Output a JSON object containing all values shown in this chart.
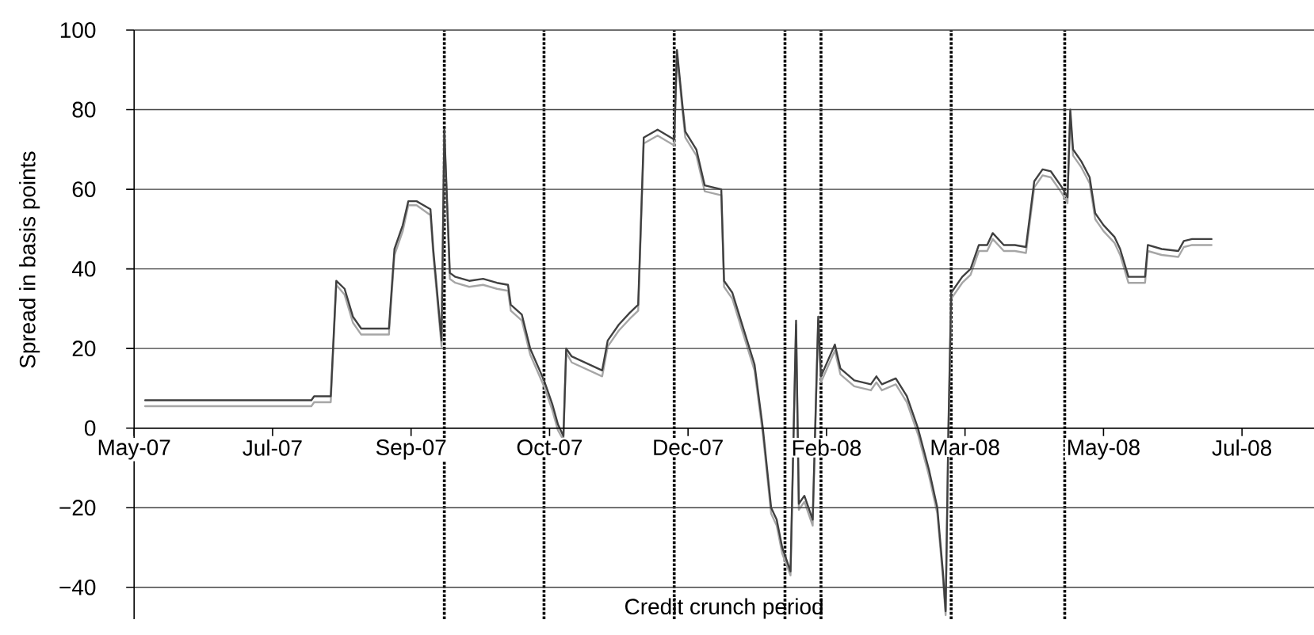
{
  "chart_data": {
    "type": "line",
    "xlabel": "Credit crunch period",
    "ylabel": "Spread in basis points",
    "xlim": [
      "2007-05-31",
      "2008-07-30"
    ],
    "xticks": [
      {
        "value": "2007-05-31",
        "label": "May-07"
      },
      {
        "value": "2007-07-20",
        "label": "Jul-07"
      },
      {
        "value": "2007-09-08",
        "label": "Sep-07"
      },
      {
        "value": "2007-10-28",
        "label": "Oct-07"
      },
      {
        "value": "2007-12-17",
        "label": "Dec-07"
      },
      {
        "value": "2008-02-05",
        "label": "Feb-08"
      },
      {
        "value": "2008-03-26",
        "label": "Mar-08"
      },
      {
        "value": "2008-05-15",
        "label": "May-08"
      },
      {
        "value": "2008-07-04",
        "label": "Jul-08"
      }
    ],
    "ylim": [
      -48,
      100
    ],
    "yticks": [
      {
        "value": -40,
        "label": "−40"
      },
      {
        "value": -20,
        "label": "−20"
      },
      0,
      20,
      40,
      60,
      80,
      100
    ],
    "grid": "y",
    "marker": "none",
    "line_style": "solid",
    "x": [
      "2007-06-04",
      "2007-08-03",
      "2007-08-04",
      "2007-08-10",
      "2007-08-12",
      "2007-08-15",
      "2007-08-18",
      "2007-08-21",
      "2007-08-31",
      "2007-09-02",
      "2007-09-05",
      "2007-09-07",
      "2007-09-10",
      "2007-09-15",
      "2007-09-16",
      "2007-09-19",
      "2007-09-20",
      "2007-09-22",
      "2007-09-24",
      "2007-09-29",
      "2007-10-04",
      "2007-10-09",
      "2007-10-13",
      "2007-10-14",
      "2007-10-18",
      "2007-10-21",
      "2007-10-26",
      "2007-10-29",
      "2007-10-31",
      "2007-11-02",
      "2007-11-03",
      "2007-11-05",
      "2007-11-16",
      "2007-11-18",
      "2007-11-22",
      "2007-11-26",
      "2007-11-29",
      "2007-12-01",
      "2007-12-06",
      "2007-12-12",
      "2007-12-13",
      "2007-12-15",
      "2007-12-16",
      "2007-12-20",
      "2007-12-23",
      "2007-12-29",
      "2007-12-30",
      "2008-01-02",
      "2008-01-06",
      "2008-01-10",
      "2008-01-13",
      "2008-01-16",
      "2008-01-18",
      "2008-01-20",
      "2008-01-23",
      "2008-01-25",
      "2008-01-26",
      "2008-01-28",
      "2008-01-31",
      "2008-02-02",
      "2008-02-03",
      "2008-02-08",
      "2008-02-10",
      "2008-02-15",
      "2008-02-21",
      "2008-02-23",
      "2008-02-25",
      "2008-03-01",
      "2008-03-05",
      "2008-03-09",
      "2008-03-13",
      "2008-03-16",
      "2008-03-18",
      "2008-03-19",
      "2008-03-20",
      "2008-03-21",
      "2008-03-25",
      "2008-03-28",
      "2008-03-31",
      "2008-04-03",
      "2008-04-05",
      "2008-04-09",
      "2008-04-13",
      "2008-04-17",
      "2008-04-20",
      "2008-04-23",
      "2008-04-26",
      "2008-04-30",
      "2008-05-02",
      "2008-05-03",
      "2008-05-04",
      "2008-05-07",
      "2008-05-10",
      "2008-05-12",
      "2008-05-15",
      "2008-05-19",
      "2008-05-21",
      "2008-05-24",
      "2008-05-30",
      "2008-05-31",
      "2008-06-05",
      "2008-06-11",
      "2008-06-13",
      "2008-06-16",
      "2008-06-19",
      "2008-06-23"
    ],
    "series": [
      {
        "color": "#a6a6a6",
        "values": [
          5.5,
          5.5,
          6.5,
          6.5,
          36,
          33.5,
          26.5,
          23.5,
          23.5,
          43.5,
          49.5,
          56,
          56,
          53.5,
          43.5,
          20.5,
          74,
          37.5,
          36.5,
          35.5,
          36,
          35,
          34.5,
          29.5,
          27,
          18.5,
          10.5,
          4.5,
          -0.5,
          -3,
          19,
          16.5,
          13,
          20.5,
          24.5,
          27.5,
          29.5,
          71.5,
          73.5,
          71,
          94,
          79.5,
          73,
          68.5,
          59.5,
          58.5,
          35.5,
          32.5,
          23.5,
          14.5,
          -1.5,
          -21.5,
          -24.5,
          -31.5,
          -37,
          26,
          -20.5,
          -18.5,
          -24.5,
          27,
          11.5,
          19.5,
          13.5,
          10.5,
          9.5,
          11.5,
          9.5,
          11,
          6.5,
          -1.5,
          -12,
          -21.5,
          -37.5,
          -47,
          -1.5,
          32.5,
          36.5,
          38.5,
          44.5,
          44.5,
          47.5,
          44.5,
          44.5,
          44,
          60.5,
          63.5,
          63,
          59,
          56.5,
          79,
          68.5,
          65.5,
          61.5,
          52.5,
          49.5,
          46.5,
          43.5,
          36.5,
          36.5,
          44.5,
          43.5,
          43,
          45.5,
          46,
          46,
          46
        ]
      },
      {
        "color": "#404040",
        "values": [
          7,
          7,
          8,
          8,
          37,
          35,
          28,
          25,
          25,
          45,
          51,
          57,
          57,
          55,
          45,
          22,
          75,
          39,
          38,
          37,
          37.5,
          36.5,
          36,
          31,
          28.5,
          20,
          12,
          6,
          1,
          -2,
          20,
          18,
          14.5,
          22,
          26,
          29,
          31,
          73,
          75,
          72.5,
          95,
          81,
          74.5,
          70,
          61,
          60,
          37,
          34,
          25,
          16,
          0,
          -20,
          -23,
          -30,
          -36,
          27,
          -19,
          -17,
          -23,
          28,
          13,
          21,
          15,
          12,
          11,
          13,
          11,
          12.5,
          8,
          0,
          -10.5,
          -20,
          -36,
          -46,
          0,
          34,
          38,
          40,
          46,
          46,
          49,
          46,
          46,
          45.5,
          62,
          65,
          64.5,
          60.5,
          58,
          80,
          70,
          67,
          63,
          54,
          51,
          48,
          45,
          38,
          38,
          46,
          45,
          44.5,
          47,
          47.5,
          47.5,
          47.5
        ]
      }
    ],
    "ref_lines": [
      {
        "axis": "x",
        "value": "2007-09-20",
        "color": "#000000",
        "line_style": "dotted"
      },
      {
        "axis": "x",
        "value": "2007-10-26",
        "color": "#000000",
        "line_style": "dotted"
      },
      {
        "axis": "x",
        "value": "2007-12-12",
        "color": "#000000",
        "line_style": "dotted"
      },
      {
        "axis": "x",
        "value": "2008-01-21",
        "color": "#000000",
        "line_style": "dotted"
      },
      {
        "axis": "x",
        "value": "2008-02-03",
        "color": "#000000",
        "line_style": "dotted"
      },
      {
        "axis": "x",
        "value": "2008-03-21",
        "color": "#000000",
        "line_style": "dotted"
      },
      {
        "axis": "x",
        "value": "2008-05-01",
        "color": "#000000",
        "line_style": "dotted"
      }
    ]
  }
}
